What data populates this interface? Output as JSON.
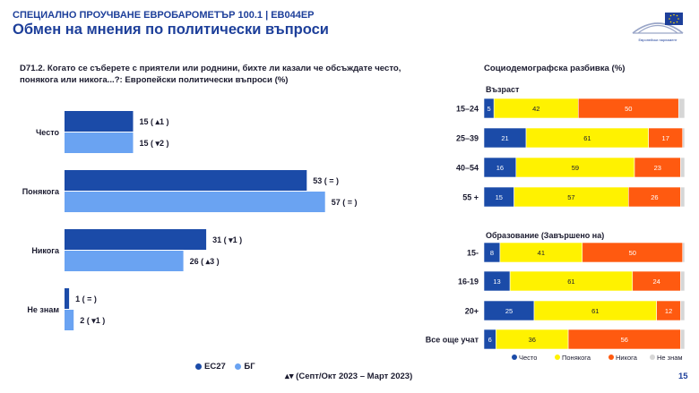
{
  "header": {
    "subtitle": "СПЕЦИАЛНО ПРОУЧВАНЕ ЕВРОБАРОМЕТЪР 100.1 | EB044EP",
    "title": "Обмен на мнения по политически въпроси",
    "logo_text": "Европейски парламент"
  },
  "question": "D71.2. Когато се съберете с приятели или роднини, бихте ли казали че обсъждате често, понякога или никога...?: Европейски политически въпроси (%)",
  "socio_title": "Социодемографска разбивка (%)",
  "colors": {
    "eu27": "#1b4ba8",
    "bg": "#6aa3f2",
    "often": "#1b4ba8",
    "sometimes": "#fff200",
    "never": "#ff5a10",
    "dont_know": "#d6d6d6",
    "flag": [
      "#ffffff",
      "#00966e",
      "#d62612"
    ]
  },
  "chart_data": [
    {
      "type": "bar",
      "orientation": "horizontal",
      "categories": [
        "Често",
        "Понякога",
        "Никога",
        "Не знам"
      ],
      "series": [
        {
          "name": "ЕС27",
          "values": [
            15,
            53,
            31,
            1
          ],
          "labels": [
            "15 ( ▴1 )",
            "53 ( = )",
            "31 ( ▾1 )",
            "1 ( = )"
          ]
        },
        {
          "name": "БГ",
          "values": [
            15,
            57,
            26,
            2
          ],
          "labels": [
            "15 ( ▾2 )",
            "57 ( = )",
            "26 ( ▴3 )",
            "2 ( ▾1 )"
          ]
        }
      ],
      "xlim": [
        0,
        60
      ],
      "legend": [
        "ЕС27",
        "БГ"
      ],
      "note": "▴▾ (Септ/Окт 2023 – Март 2023)"
    },
    {
      "type": "bar",
      "orientation": "horizontal",
      "stacked": true,
      "groups": [
        {
          "title": "Възраст",
          "rows": [
            {
              "label": "15–24",
              "values": [
                5,
                42,
                50,
                3
              ]
            },
            {
              "label": "25–39",
              "values": [
                21,
                61,
                17,
                1
              ]
            },
            {
              "label": "40–54",
              "values": [
                16,
                59,
                23,
                2
              ]
            },
            {
              "label": "55 +",
              "values": [
                15,
                57,
                26,
                2
              ]
            }
          ]
        },
        {
          "title": "Образование (Завършено на)",
          "rows": [
            {
              "label": "15-",
              "values": [
                8,
                41,
                50,
                1
              ]
            },
            {
              "label": "16-19",
              "values": [
                13,
                61,
                24,
                2
              ]
            },
            {
              "label": "20+",
              "values": [
                25,
                61,
                12,
                2
              ]
            },
            {
              "label": "Все още учат",
              "values": [
                6,
                36,
                56,
                2
              ]
            }
          ]
        }
      ],
      "series_names": [
        "Често",
        "Понякога",
        "Никога",
        "Не знам"
      ],
      "legend_position": "bottom"
    }
  ],
  "page_number": "15"
}
